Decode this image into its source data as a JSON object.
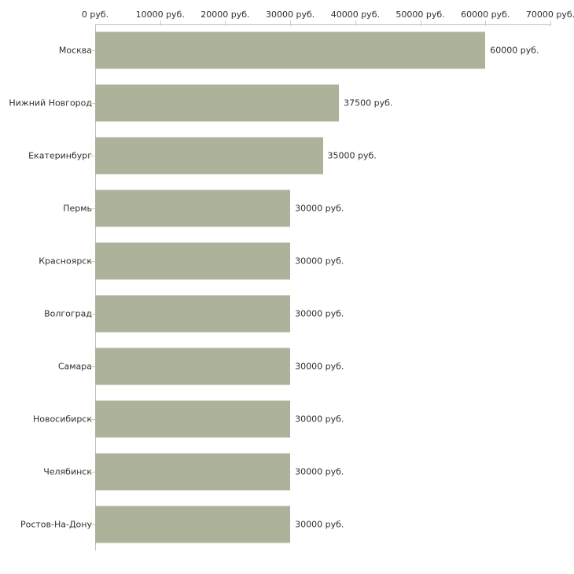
{
  "chart_data": {
    "type": "bar",
    "orientation": "horizontal",
    "title": "",
    "categories": [
      "Москва",
      "Нижний Новгород",
      "Екатеринбург",
      "Пермь",
      "Красноярск",
      "Волгоград",
      "Самара",
      "Новосибирск",
      "Челябинск",
      "Ростов-На-Дону"
    ],
    "values": [
      60000,
      37500,
      35000,
      30000,
      30000,
      30000,
      30000,
      30000,
      30000,
      30000
    ],
    "value_labels": [
      "60000 руб.",
      "37500 руб.",
      "35000 руб.",
      "30000 руб.",
      "30000 руб.",
      "30000 руб.",
      "30000 руб.",
      "30000 руб.",
      "30000 руб.",
      "30000 руб."
    ],
    "x_axis": {
      "position": "top",
      "min": 0,
      "max": 70000,
      "ticks": [
        0,
        10000,
        20000,
        30000,
        40000,
        50000,
        60000,
        70000
      ],
      "tick_labels": [
        "0 руб.",
        "10000 руб.",
        "20000 руб.",
        "30000 руб.",
        "40000 руб.",
        "50000 руб.",
        "60000 руб.",
        "70000 руб."
      ]
    },
    "ylabel": "",
    "xlabel": "",
    "legend": null,
    "grid": false,
    "colors": {
      "bar": "#adb39a",
      "axis": "#c1c1c1",
      "tick": "#cdd2a9",
      "text": "#2e2e2e",
      "background": "#ffffff"
    }
  }
}
